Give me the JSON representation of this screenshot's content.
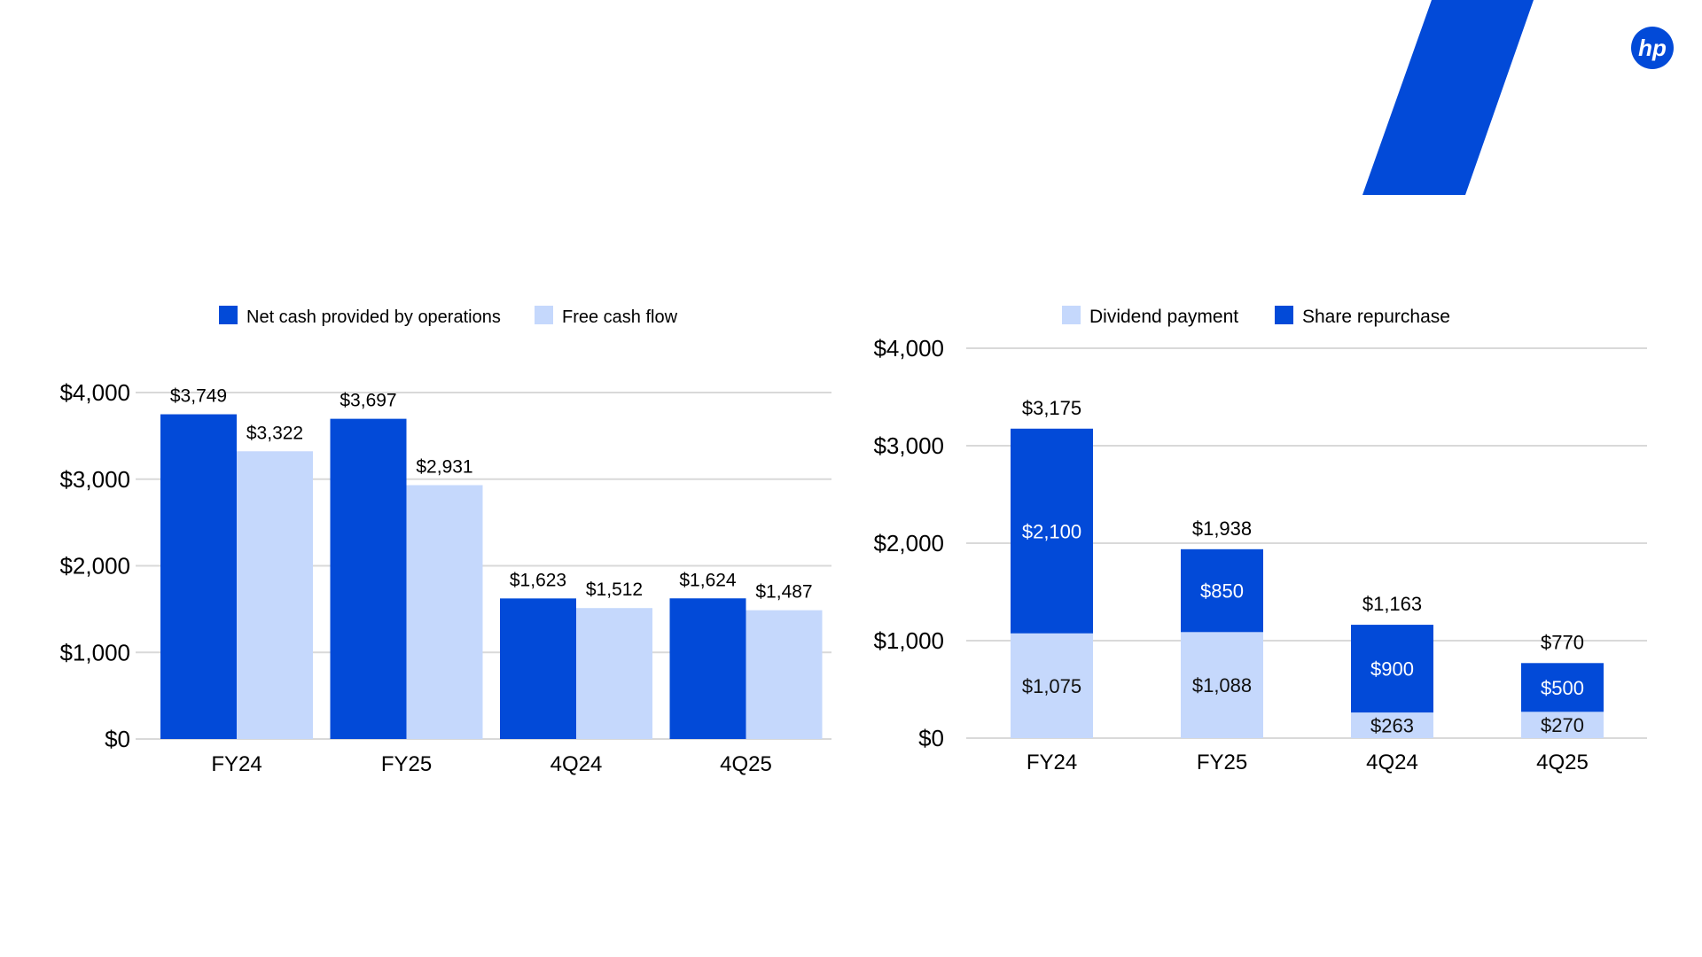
{
  "colors": {
    "dark": "#024ad8",
    "light": "#c5d8fc",
    "grid": "#d9d9d9"
  },
  "logo": {
    "text": "hp"
  },
  "chart_data": [
    {
      "type": "bar",
      "categories": [
        "FY24",
        "FY25",
        "4Q24",
        "4Q25"
      ],
      "series": [
        {
          "name": "Net cash provided by operations",
          "values": [
            3749,
            3697,
            1623,
            1624
          ],
          "labels": [
            "$3,749",
            "$3,697",
            "$1,623",
            "$1,624"
          ]
        },
        {
          "name": "Free cash flow",
          "values": [
            3322,
            2931,
            1512,
            1487
          ],
          "labels": [
            "$3,322",
            "$2,931",
            "$1,512",
            "$1,487"
          ]
        }
      ],
      "ylim": [
        0,
        4000
      ],
      "yticks": [
        "$0",
        "$1,000",
        "$2,000",
        "$3,000",
        "$4,000"
      ],
      "grid": true,
      "legend": "top"
    },
    {
      "type": "stacked-bar",
      "categories": [
        "FY24",
        "FY25",
        "4Q24",
        "4Q25"
      ],
      "series": [
        {
          "name": "Dividend payment",
          "values": [
            1075,
            1088,
            263,
            270
          ],
          "labels": [
            "$1,075",
            "$1,088",
            "$263",
            "$270"
          ]
        },
        {
          "name": "Share repurchase",
          "values": [
            2100,
            850,
            900,
            500
          ],
          "labels": [
            "$2,100",
            "$850",
            "$900",
            "$500"
          ]
        }
      ],
      "totals": [
        "$3,175",
        "$1,938",
        "$1,163",
        "$770"
      ],
      "total_values": [
        3175,
        1938,
        1163,
        770
      ],
      "ylim": [
        0,
        4000
      ],
      "yticks": [
        "$0",
        "$1,000",
        "$2,000",
        "$3,000",
        "$4,000"
      ],
      "grid": true,
      "legend": "top"
    }
  ]
}
